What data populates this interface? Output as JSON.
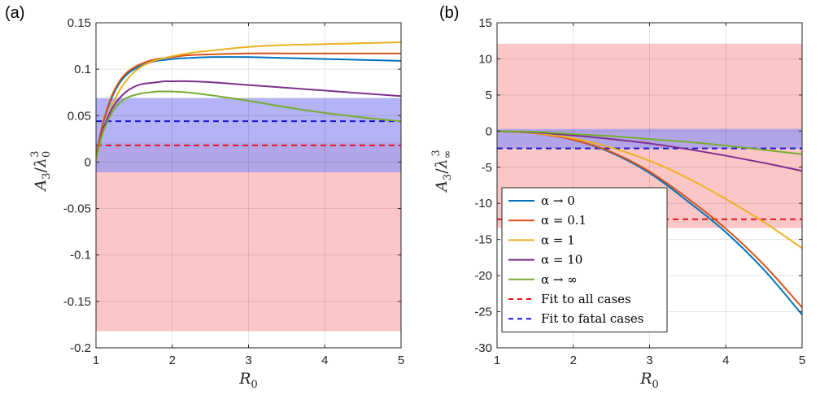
{
  "chart_data": [
    {
      "panel_label": "(a)",
      "type": "line",
      "xlabel": "R_0",
      "ylabel": "A_3/λ_0^3",
      "xlim": [
        1,
        5
      ],
      "ylim": [
        -0.2,
        0.15
      ],
      "xticks": [
        "1",
        "2",
        "3",
        "4",
        "5"
      ],
      "yticks": [
        "-0.2",
        "-0.15",
        "-0.1",
        "-0.05",
        "0",
        "0.05",
        "0.1",
        "0.15"
      ],
      "yticks_values": [
        -0.2,
        -0.15,
        -0.1,
        -0.05,
        0,
        0.05,
        0.1,
        0.15
      ],
      "grid": true,
      "bands": [
        {
          "name": "Fit to all cases",
          "color": "#f8b3b3",
          "ymin": -0.182,
          "ymax": 0.021
        },
        {
          "name": "Fit to fatal cases",
          "color": "#9999f2",
          "ymin": -0.011,
          "ymax": 0.069
        }
      ],
      "hlines": [
        {
          "name": "Fit to all cases",
          "color": "#e8141c",
          "y": 0.018
        },
        {
          "name": "Fit to fatal cases",
          "color": "#1a14d6",
          "y": 0.044
        }
      ],
      "x": [
        1.0,
        1.05,
        1.1,
        1.2,
        1.3,
        1.4,
        1.5,
        1.6,
        1.7,
        1.8,
        1.9,
        2.0,
        2.2,
        2.5,
        3.0,
        3.5,
        4.0,
        4.5,
        5.0
      ],
      "series": [
        {
          "name": "α → 0",
          "color": "#0072bd",
          "values": [
            0.005,
            0.026,
            0.044,
            0.068,
            0.084,
            0.094,
            0.1,
            0.104,
            0.107,
            0.109,
            0.11,
            0.111,
            0.112,
            0.113,
            0.113,
            0.112,
            0.111,
            0.11,
            0.109
          ]
        },
        {
          "name": "α = 0.1",
          "color": "#d95319",
          "values": [
            0.005,
            0.027,
            0.045,
            0.07,
            0.086,
            0.096,
            0.102,
            0.106,
            0.109,
            0.111,
            0.112,
            0.113,
            0.115,
            0.116,
            0.117,
            0.117,
            0.117,
            0.117,
            0.117
          ]
        },
        {
          "name": "α = 1",
          "color": "#edb120",
          "values": [
            0.002,
            0.02,
            0.036,
            0.059,
            0.076,
            0.088,
            0.097,
            0.103,
            0.107,
            0.11,
            0.112,
            0.114,
            0.117,
            0.12,
            0.124,
            0.126,
            0.127,
            0.128,
            0.129
          ]
        },
        {
          "name": "α = 10",
          "color": "#7e2f8e",
          "values": [
            0.004,
            0.022,
            0.037,
            0.056,
            0.068,
            0.076,
            0.081,
            0.084,
            0.085,
            0.086,
            0.087,
            0.087,
            0.087,
            0.086,
            0.083,
            0.08,
            0.077,
            0.074,
            0.071
          ]
        },
        {
          "name": "α → ∞",
          "color": "#77ac30",
          "values": [
            0.004,
            0.02,
            0.034,
            0.052,
            0.063,
            0.069,
            0.072,
            0.074,
            0.075,
            0.076,
            0.076,
            0.076,
            0.075,
            0.072,
            0.066,
            0.059,
            0.053,
            0.048,
            0.044
          ]
        }
      ]
    },
    {
      "panel_label": "(b)",
      "type": "line",
      "xlabel": "R_0",
      "ylabel": "A_3/λ_∞^3",
      "xlim": [
        1,
        5
      ],
      "ylim": [
        -30,
        15
      ],
      "xticks": [
        "1",
        "2",
        "3",
        "4",
        "5"
      ],
      "yticks": [
        "-30",
        "-25",
        "-20",
        "-15",
        "-10",
        "-5",
        "0",
        "5",
        "10",
        "15"
      ],
      "yticks_values": [
        -30,
        -25,
        -20,
        -15,
        -10,
        -5,
        0,
        5,
        10,
        15
      ],
      "grid": true,
      "legend_location": "lower-left",
      "bands": [
        {
          "name": "Fit to all cases",
          "color": "#f8b3b3",
          "ymin": -13.4,
          "ymax": 12.1
        },
        {
          "name": "Fit to fatal cases",
          "color": "#9999f2",
          "ymin": -2.4,
          "ymax": 0.3
        }
      ],
      "hlines": [
        {
          "name": "Fit to all cases",
          "color": "#e8141c",
          "y": -12.2
        },
        {
          "name": "Fit to fatal cases",
          "color": "#1a14d6",
          "y": -2.4
        }
      ],
      "x": [
        1.0,
        1.5,
        2.0,
        2.5,
        3.0,
        3.5,
        4.0,
        4.5,
        5.0
      ],
      "series": [
        {
          "name": "α → 0",
          "color": "#0072bd",
          "values": [
            0,
            -0.3,
            -1.2,
            -3.0,
            -5.8,
            -9.7,
            -14.0,
            -19.2,
            -25.4
          ]
        },
        {
          "name": "α = 0.1",
          "color": "#d95319",
          "values": [
            0,
            -0.3,
            -1.2,
            -2.9,
            -5.6,
            -9.3,
            -13.5,
            -18.5,
            -24.4
          ]
        },
        {
          "name": "α = 1",
          "color": "#edb120",
          "values": [
            0,
            -0.3,
            -1.0,
            -2.3,
            -4.1,
            -6.5,
            -9.4,
            -12.6,
            -16.2
          ]
        },
        {
          "name": "α = 10",
          "color": "#7e2f8e",
          "values": [
            0,
            -0.2,
            -0.6,
            -1.1,
            -1.7,
            -2.5,
            -3.4,
            -4.4,
            -5.5
          ]
        },
        {
          "name": "α → ∞",
          "color": "#77ac30",
          "values": [
            0,
            -0.1,
            -0.4,
            -0.7,
            -1.1,
            -1.5,
            -2.0,
            -2.6,
            -3.2
          ]
        }
      ]
    }
  ],
  "legend": {
    "items": [
      {
        "label": "α → 0",
        "color": "#0072bd",
        "style": "solid"
      },
      {
        "label": "α = 0.1",
        "color": "#d95319",
        "style": "solid"
      },
      {
        "label": "α = 1",
        "color": "#edb120",
        "style": "solid"
      },
      {
        "label": "α = 10",
        "color": "#7e2f8e",
        "style": "solid"
      },
      {
        "label": "α → ∞",
        "color": "#77ac30",
        "style": "solid"
      },
      {
        "label": "Fit to all cases",
        "color": "#e8141c",
        "style": "dashed"
      },
      {
        "label": "Fit to fatal cases",
        "color": "#1a14d6",
        "style": "dashed"
      }
    ]
  }
}
